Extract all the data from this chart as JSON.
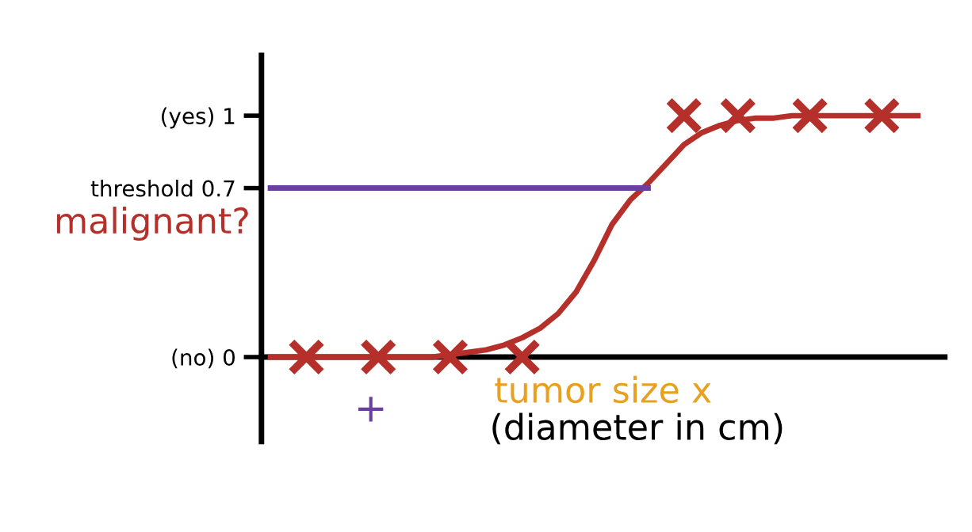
{
  "chart_data": {
    "type": "scatter",
    "categories": [
      null,
      null,
      null,
      null,
      null,
      null,
      null,
      null,
      null,
      null,
      null,
      null,
      null,
      null,
      null,
      null,
      null,
      null,
      null,
      null,
      null,
      null,
      null,
      null,
      null,
      null,
      null,
      null,
      null,
      null,
      null,
      null,
      null,
      null,
      null,
      null,
      null
    ],
    "series": [
      {
        "color": "#b5302a",
        "marker": "cross",
        "values": [
          null,
          null,
          0,
          null,
          null,
          null,
          0,
          null,
          null,
          null,
          0,
          null,
          null,
          null,
          0,
          null,
          null,
          null,
          null,
          null,
          null,
          null,
          null,
          1,
          null,
          null,
          1,
          null,
          null,
          null,
          1,
          null,
          null,
          null,
          1,
          null,
          null
        ]
      },
      {
        "type": "line",
        "color": "#b5302a",
        "marker": "none",
        "values": [
          0,
          0,
          0,
          0,
          0,
          0,
          0,
          0,
          0,
          0,
          0.01,
          0.02,
          0.03,
          0.05,
          0.08,
          0.12,
          0.18,
          0.27,
          0.4,
          0.55,
          0.65,
          0.72,
          0.8,
          0.88,
          0.93,
          0.96,
          0.98,
          0.99,
          0.99,
          1,
          1,
          1,
          1,
          1,
          1,
          1,
          1
        ]
      },
      {
        "type": "line",
        "color": "#6a3fa0",
        "marker": "none",
        "values": [
          0.7,
          0.7,
          0.7,
          0.7,
          0.7,
          0.7,
          0.7,
          0.7,
          0.7,
          0.7,
          0.7,
          0.7,
          0.7,
          0.7,
          0.7,
          0.7,
          0.7,
          0.7,
          0.7,
          0.7,
          0.7,
          0.7,
          null,
          null,
          null,
          null,
          null,
          null,
          null,
          null,
          null,
          null,
          null,
          null,
          null,
          null,
          null
        ]
      }
    ],
    "ylabel": "malignant?",
    "xlabel": "tumor size x",
    "ylim": [
      -0.35,
      1.25
    ],
    "yticks": [
      {
        "value": 0,
        "label": "(no) 0"
      },
      {
        "value": 0.7,
        "label": "threshold 0.7"
      },
      {
        "value": 1,
        "label": "(yes) 1"
      }
    ],
    "annotations": [
      "(diameter in cm)",
      "+"
    ],
    "legend": false
  }
}
